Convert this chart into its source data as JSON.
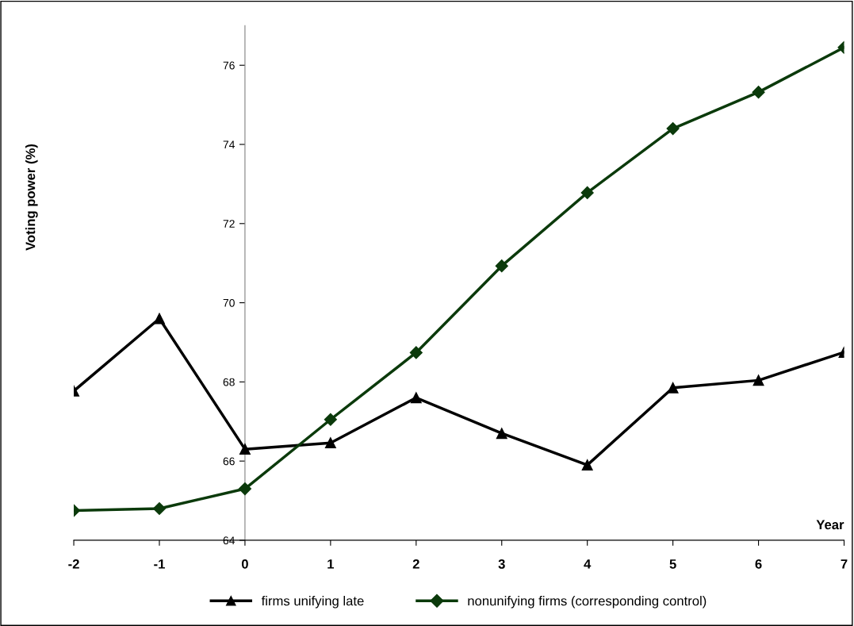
{
  "chart_data": {
    "type": "line",
    "xlabel": "Year",
    "ylabel": "Voting power (%)",
    "x": [
      -2,
      -1,
      0,
      1,
      2,
      3,
      4,
      5,
      6,
      7
    ],
    "series": [
      {
        "name": "firms unifying late",
        "color": "#000000",
        "marker": "triangle",
        "values": [
          67.77,
          69.6,
          66.3,
          66.46,
          67.6,
          66.7,
          65.9,
          67.85,
          68.04,
          68.75
        ]
      },
      {
        "name": "nonunifying firms (corresponding control)",
        "color": "#0b3a0b",
        "marker": "diamond",
        "values": [
          64.75,
          64.8,
          65.3,
          67.05,
          68.74,
          70.93,
          72.78,
          74.4,
          75.32,
          76.45
        ]
      }
    ],
    "xlim": [
      -2,
      7
    ],
    "xticks": [
      -2,
      -1,
      0,
      1,
      2,
      3,
      4,
      5,
      6,
      7
    ],
    "ylim": [
      64,
      77
    ],
    "yticks": [
      64,
      66,
      68,
      70,
      72,
      74,
      76
    ],
    "legend": "bottom",
    "grid": false
  }
}
